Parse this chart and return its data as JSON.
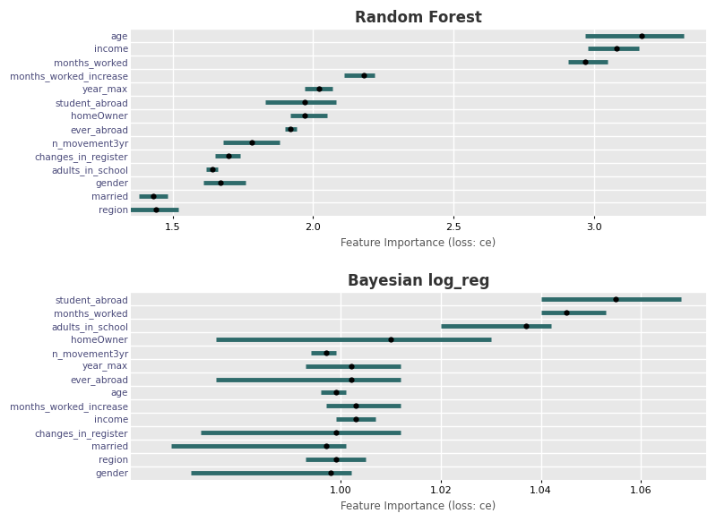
{
  "rf": {
    "title": "Random Forest",
    "xlabel": "Feature Importance (loss: ce)",
    "features": [
      "age",
      "income",
      "months_worked",
      "months_worked_increase",
      "year_max",
      "student_abroad",
      "homeOwner",
      "ever_abroad",
      "n_movement3yr",
      "changes_in_register",
      "adults_in_school",
      "gender",
      "married",
      "region"
    ],
    "mean": [
      3.17,
      3.08,
      2.97,
      2.18,
      2.02,
      1.97,
      1.97,
      1.92,
      1.78,
      1.7,
      1.64,
      1.67,
      1.43,
      1.44
    ],
    "low": [
      2.97,
      2.98,
      2.91,
      2.11,
      1.97,
      1.83,
      1.92,
      1.9,
      1.68,
      1.65,
      1.62,
      1.61,
      1.38,
      1.3
    ],
    "high": [
      3.32,
      3.16,
      3.05,
      2.22,
      2.07,
      2.08,
      2.05,
      1.94,
      1.88,
      1.74,
      1.66,
      1.76,
      1.48,
      1.52
    ],
    "xlim_left": 1.35,
    "xlim_right": 3.4,
    "xticks": [
      1.5,
      2.0,
      2.5,
      3.0
    ]
  },
  "blr": {
    "title": "Bayesian log_reg",
    "xlabel": "Feature Importance (loss: ce)",
    "features": [
      "student_abroad",
      "months_worked",
      "adults_in_school",
      "homeOwner",
      "n_movement3yr",
      "year_max",
      "ever_abroad",
      "age",
      "months_worked_increase",
      "income",
      "changes_in_register",
      "married",
      "region",
      "gender"
    ],
    "mean": [
      1.055,
      1.045,
      1.037,
      1.01,
      0.997,
      1.002,
      1.002,
      0.999,
      1.003,
      1.003,
      0.999,
      0.997,
      0.999,
      0.998
    ],
    "low": [
      1.04,
      1.04,
      1.02,
      0.975,
      0.994,
      0.993,
      0.975,
      0.996,
      0.997,
      0.999,
      0.972,
      0.966,
      0.993,
      0.97
    ],
    "high": [
      1.068,
      1.053,
      1.042,
      1.03,
      0.999,
      1.012,
      1.012,
      1.001,
      1.012,
      1.007,
      1.012,
      1.001,
      1.005,
      1.002
    ],
    "xlim_left": 0.958,
    "xlim_right": 1.073,
    "xticks": [
      1.0,
      1.02,
      1.04,
      1.06
    ]
  },
  "bar_color": "#2e6b6b",
  "dot_color": "#000000",
  "bg_color": "#e8e8e8",
  "grid_color": "#ffffff",
  "label_color_rf": "#4a4a7a",
  "label_color_blr": "#4a4a7a"
}
